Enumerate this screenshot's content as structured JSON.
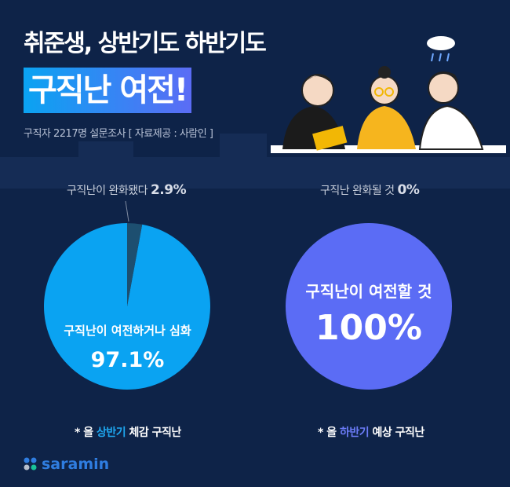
{
  "header": {
    "title": "취준생, 상반기도 하반기도",
    "highlight": "구직난 여전!",
    "subtitle": "구직자 2217명 설문조사 [ 자료제공 : 사람인 ]"
  },
  "chart_data": [
    {
      "type": "pie",
      "categories": [
        "구직난이 여전하거나 심화",
        "구직난이 완화됐다"
      ],
      "values": [
        97.1,
        2.9
      ],
      "colors": [
        "#0aa3f2",
        "#1d4f70"
      ],
      "caption": {
        "prefix": "* 올 ",
        "highlight": "상반기",
        "suffix": " 체감 구직난"
      },
      "labels": {
        "main": "구직난이 여전하거나 심화",
        "main_value": "97.1%",
        "small": "구직난이 완화됐다",
        "small_value": "2.9%"
      }
    },
    {
      "type": "pie",
      "categories": [
        "구직난이 여전할 것",
        "구직난 완화될 것"
      ],
      "values": [
        100,
        0
      ],
      "colors": [
        "#5b6cf5",
        "#1d4f70"
      ],
      "caption": {
        "prefix": "* 올 ",
        "highlight": "하반기",
        "suffix": " 예상 구직난"
      },
      "labels": {
        "main": "구직난이 여전할 것",
        "main_value": "100%",
        "small": "구직난 완화될 것",
        "small_value": "0%"
      }
    }
  ],
  "colors": {
    "background": "#0e2348",
    "accent_first_half": "#1ea7f0",
    "accent_second_half": "#6b7bf7"
  },
  "logo": {
    "text": "saramin"
  }
}
